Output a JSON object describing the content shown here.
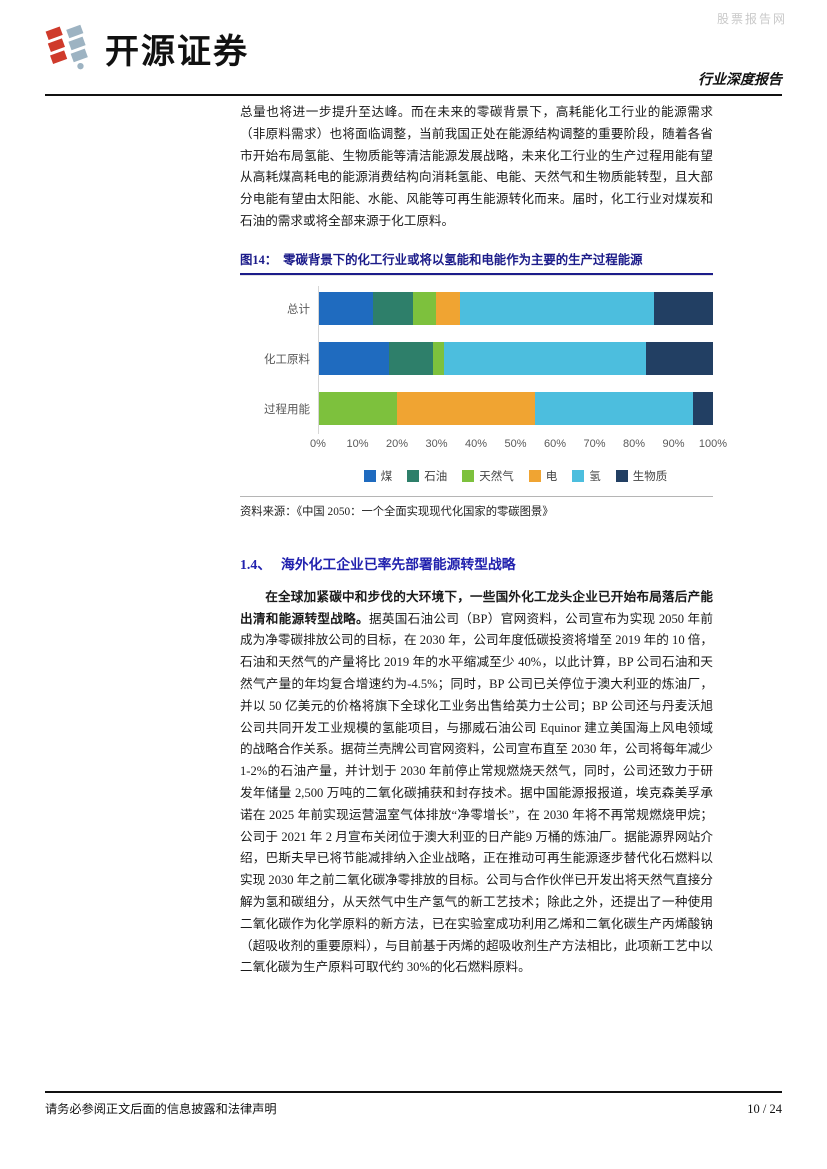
{
  "header": {
    "brand": "开源证券",
    "report_type": "行业深度报告",
    "watermark": "股票报告网"
  },
  "body": {
    "para1": "总量也将进一步提升至达峰。而在未来的零碳背景下，高耗能化工行业的能源需求（非原料需求）也将面临调整，当前我国正处在能源结构调整的重要阶段，随着各省市开始布局氢能、生物质能等清洁能源发展战略，未来化工行业的生产过程用能有望从高耗煤高耗电的能源消费结构向消耗氢能、电能、天然气和生物质能转型，且大部分电能有望由太阳能、水能、风能等可再生能源转化而来。届时，化工行业对煤炭和石油的需求或将全部来源于化工原料。",
    "section_number": "1.4、",
    "section_title": "海外化工企业已率先部署能源转型战略",
    "para2_bold": "在全球加紧碳中和步伐的大环境下，一些国外化工龙头企业已开始布局落后产能出清和能源转型战略。",
    "para2_rest": "据英国石油公司（BP）官网资料，公司宣布为实现 2050 年前成为净零碳排放公司的目标，在 2030 年，公司年度低碳投资将增至 2019 年的 10 倍，石油和天然气的产量将比 2019 年的水平缩减至少 40%，以此计算，BP 公司石油和天然气产量的年均复合增速约为-4.5%；同时，BP 公司已关停位于澳大利亚的炼油厂，并以 50 亿美元的价格将旗下全球化工业务出售给英力士公司；BP 公司还与丹麦沃旭公司共同开发工业规模的氢能项目，与挪威石油公司 Equinor 建立美国海上风电领域的战略合作关系。据荷兰壳牌公司官网资料，公司宣布直至 2030 年，公司将每年减少 1-2%的石油产量，并计划于 2030 年前停止常规燃烧天然气，同时，公司还致力于研发年储量 2,500 万吨的二氧化碳捕获和封存技术。据中国能源报报道，埃克森美孚承诺在 2025 年前实现运营温室气体排放“净零增长”，在 2030 年将不再常规燃烧甲烷；公司于 2021 年 2 月宣布关闭位于澳大利亚的日产能9 万桶的炼油厂。据能源界网站介绍，巴斯夫早已将节能减排纳入企业战略，正在推动可再生能源逐步替代化石燃料以实现 2030 年之前二氧化碳净零排放的目标。公司与合作伙伴已开发出将天然气直接分解为氢和碳组分，从天然气中生产氢气的新工艺技术；除此之外，还提出了一种使用二氧化碳作为化学原料的新方法，已在实验室成功利用乙烯和二氧化碳生产丙烯酸钠（超吸收剂的重要原料），与目前基于丙烯的超吸收剂生产方法相比，此项新工艺中以二氧化碳为生产原料可取代约 30%的化石燃料原料。"
  },
  "figure": {
    "label": "图14：",
    "title": "零碳背景下的化工行业或将以氢能和电能作为主要的生产过程能源",
    "source": "资料来源：《中国 2050：一个全面实现现代化国家的零碳图景》"
  },
  "chart_data": {
    "type": "bar",
    "orientation": "horizontal",
    "stacked": true,
    "title": "零碳背景下的化工行业或将以氢能和电能作为主要的生产过程能源",
    "categories": [
      "总计",
      "化工原料",
      "过程用能"
    ],
    "series": [
      {
        "name": "煤",
        "color": "#1f6bbf",
        "values": [
          14,
          18,
          0
        ]
      },
      {
        "name": "石油",
        "color": "#2e7f6a",
        "values": [
          10,
          11,
          0
        ]
      },
      {
        "name": "天然气",
        "color": "#7dc13d",
        "values": [
          6,
          3,
          20
        ]
      },
      {
        "name": "电",
        "color": "#f0a432",
        "values": [
          6,
          0,
          35
        ]
      },
      {
        "name": "氢",
        "color": "#4cbede",
        "values": [
          49,
          51,
          40
        ]
      },
      {
        "name": "生物质",
        "color": "#223f63",
        "values": [
          15,
          17,
          5
        ]
      }
    ],
    "x_ticks": [
      "0%",
      "10%",
      "20%",
      "30%",
      "40%",
      "50%",
      "60%",
      "70%",
      "80%",
      "90%",
      "100%"
    ],
    "xlim": [
      0,
      100
    ],
    "unit": "percent",
    "grid": false,
    "legend_position": "bottom"
  },
  "footer": {
    "disclaimer": "请务必参阅正文后面的信息披露和法律声明",
    "page": "10 / 24"
  },
  "colors": {
    "figure_title": "#1c1c8a",
    "section_heading": "#2121ae",
    "brand_red": "#cf3a2b",
    "brand_gray": "#9db3c2",
    "watermark_gray": "#c9c9c9"
  }
}
